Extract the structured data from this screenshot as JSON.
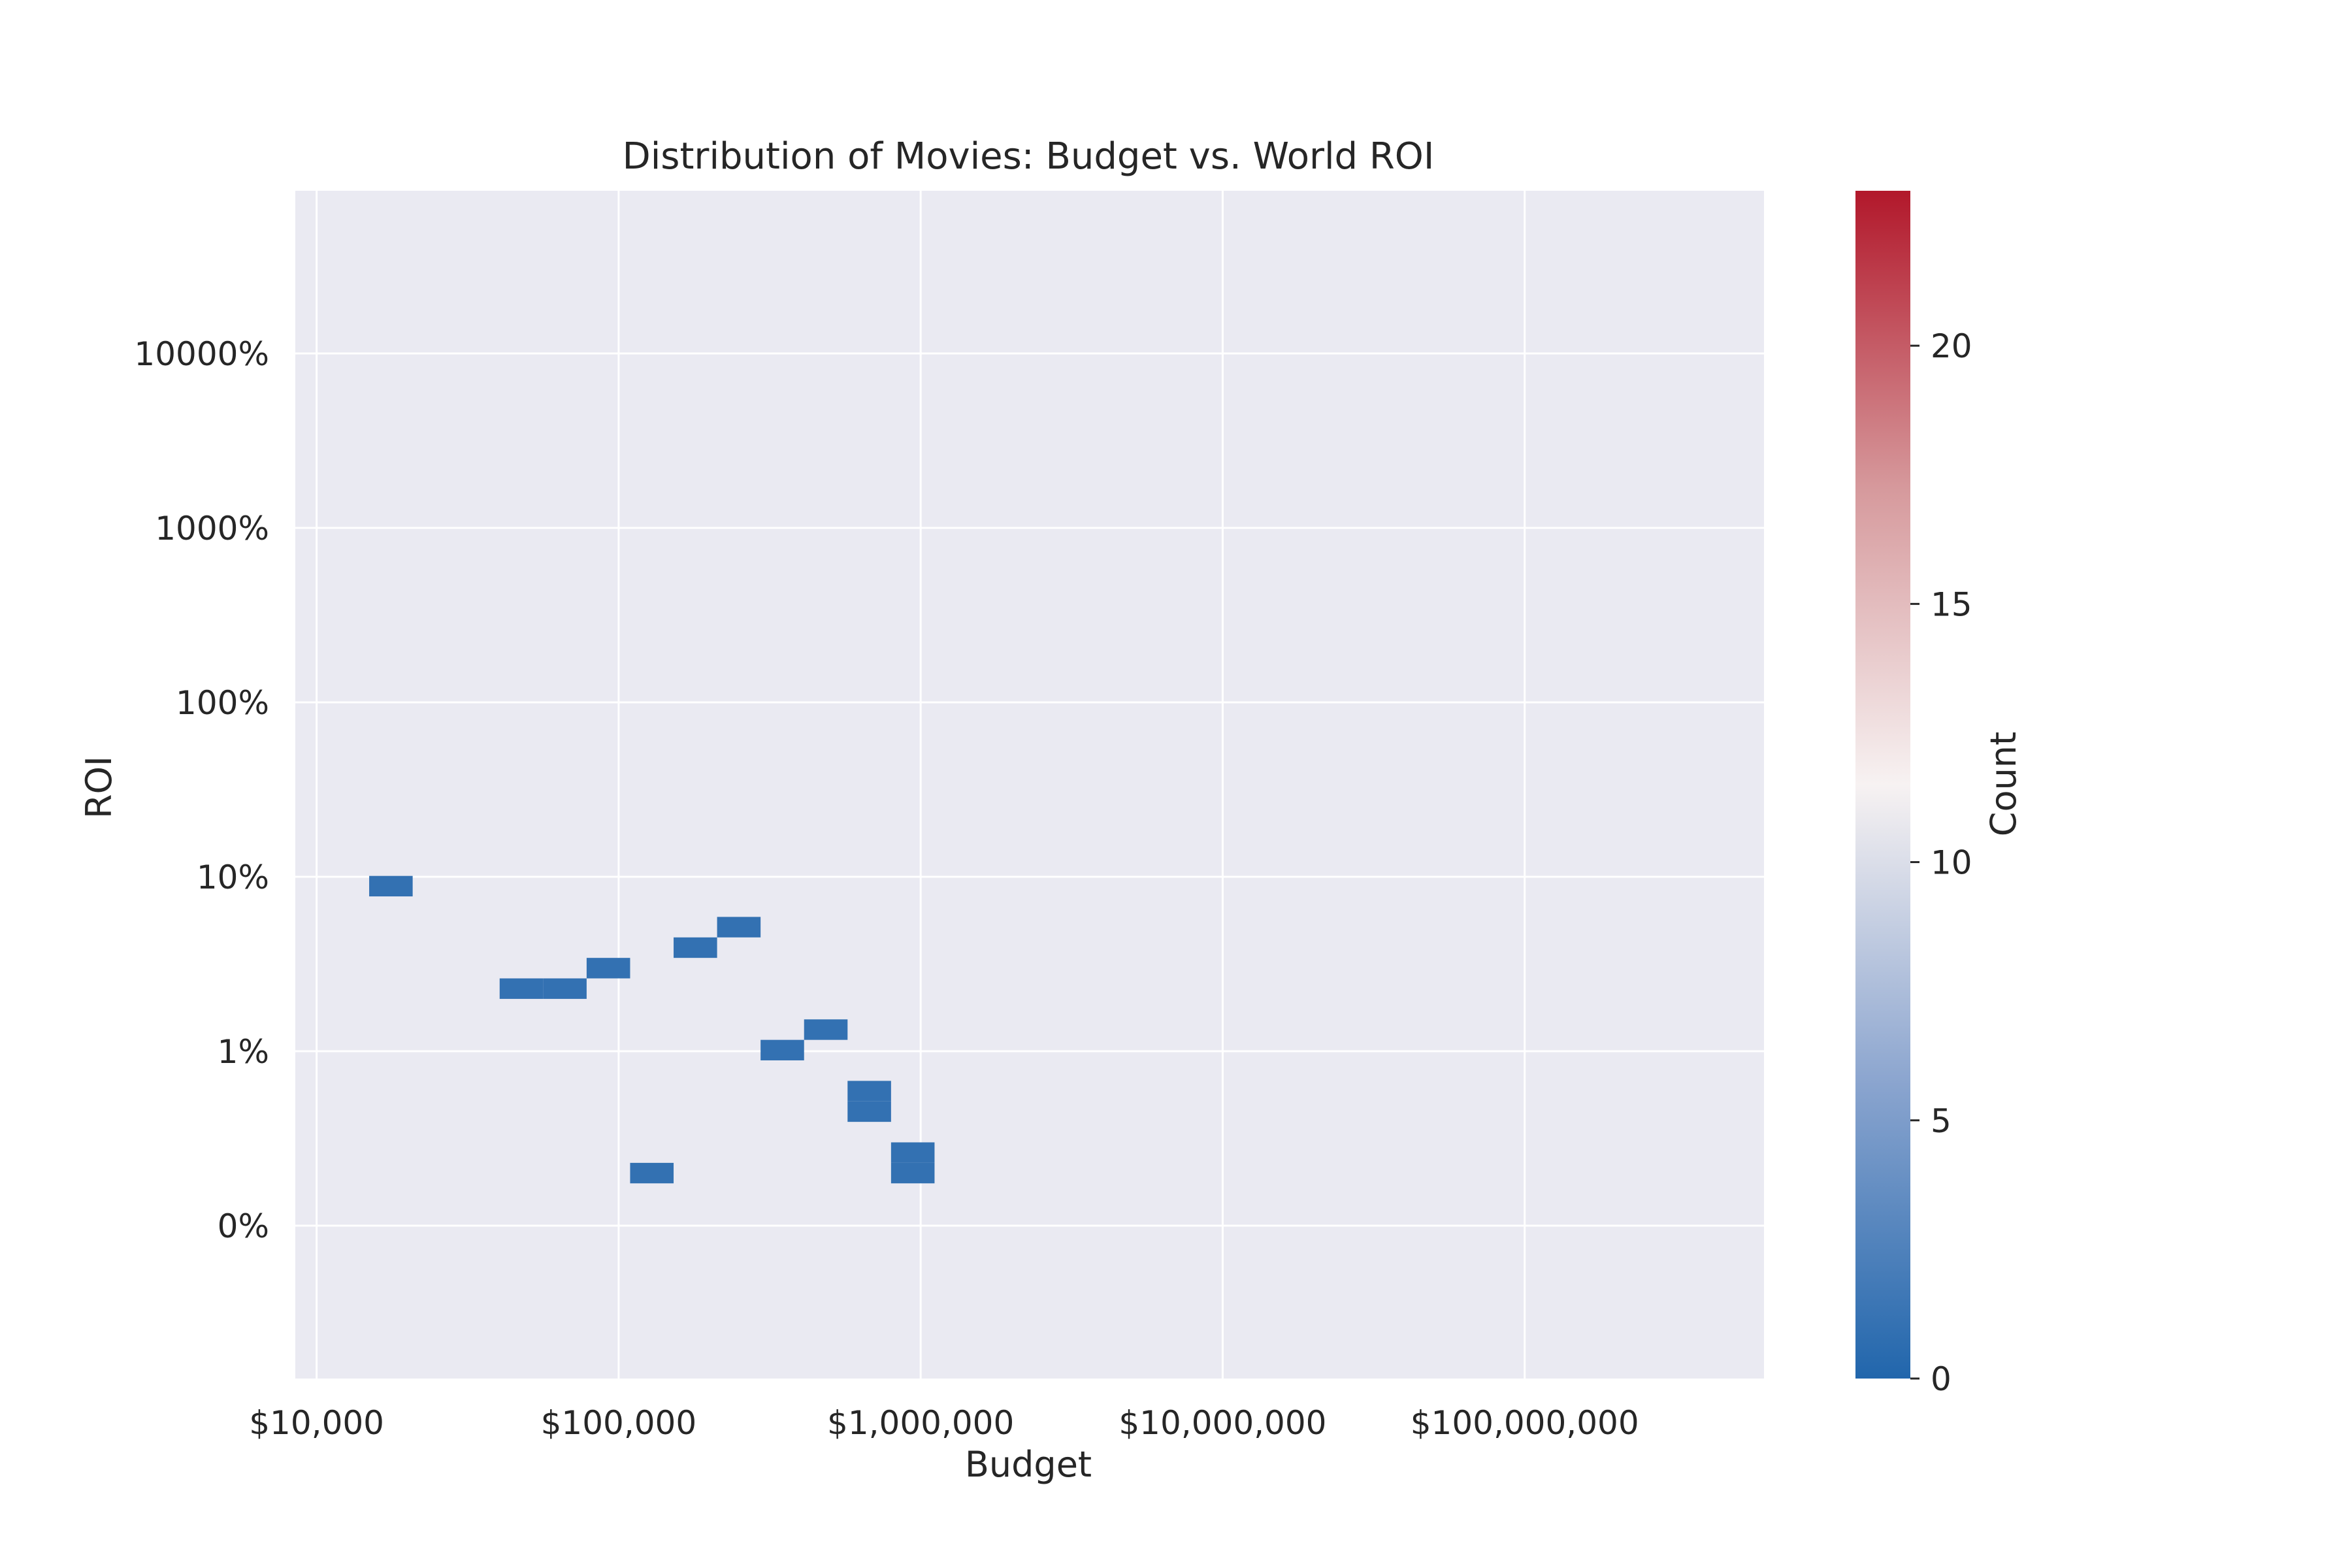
{
  "chart_data": {
    "type": "heatmap",
    "title": "Distribution of Movies: Budget vs. World ROI",
    "xlabel": "Budget",
    "ylabel": "ROI",
    "x_scale": "log",
    "xlim": [
      8500,
      620000000
    ],
    "x_ticks": [
      10000,
      100000,
      1000000,
      10000000,
      100000000
    ],
    "x_tick_labels": [
      "$10,000",
      "$100,000",
      "$1,000,000",
      "$10,000,000",
      "$100,000,000"
    ],
    "y_axis": "log-scaled ROI; tick labels as printed",
    "y_ticks": [
      0,
      1,
      2,
      3,
      4,
      5
    ],
    "y_tick_labels": [
      "0%",
      "1%",
      "10%",
      "100%",
      "1000%",
      "10000%"
    ],
    "colorbar": {
      "label": "Count",
      "min": 0,
      "max": 23,
      "ticks": [
        0,
        5,
        10,
        15,
        20
      ],
      "colormap": [
        "#2166ac",
        "#8ba5cf",
        "#f7f2f2",
        "#d6999c",
        "#b2182b"
      ],
      "colormap_stops": [
        0,
        0.25,
        0.5,
        0.75,
        1
      ]
    },
    "grid": true,
    "background": "#eaeaf2",
    "bins": {
      "x_bin_edges_start_log10": 4.03,
      "x_bin_width_log10": 0.144,
      "y_bin_edges_start_log10": -0.58,
      "y_bin_width_log10": 0.1175,
      "cells": [
        [
          1,
          21,
          1
        ],
        [
          4,
          16,
          1
        ],
        [
          5,
          16,
          1
        ],
        [
          6,
          17,
          1
        ],
        [
          7,
          7,
          1
        ],
        [
          8,
          18,
          1
        ],
        [
          9,
          19,
          1
        ],
        [
          10,
          13,
          1
        ],
        [
          11,
          14,
          1
        ],
        [
          12,
          10,
          1
        ],
        [
          12,
          11,
          1
        ],
        [
          13,
          7,
          1
        ],
        [
          13,
          8,
          1
        ]
      ]
    }
  }
}
